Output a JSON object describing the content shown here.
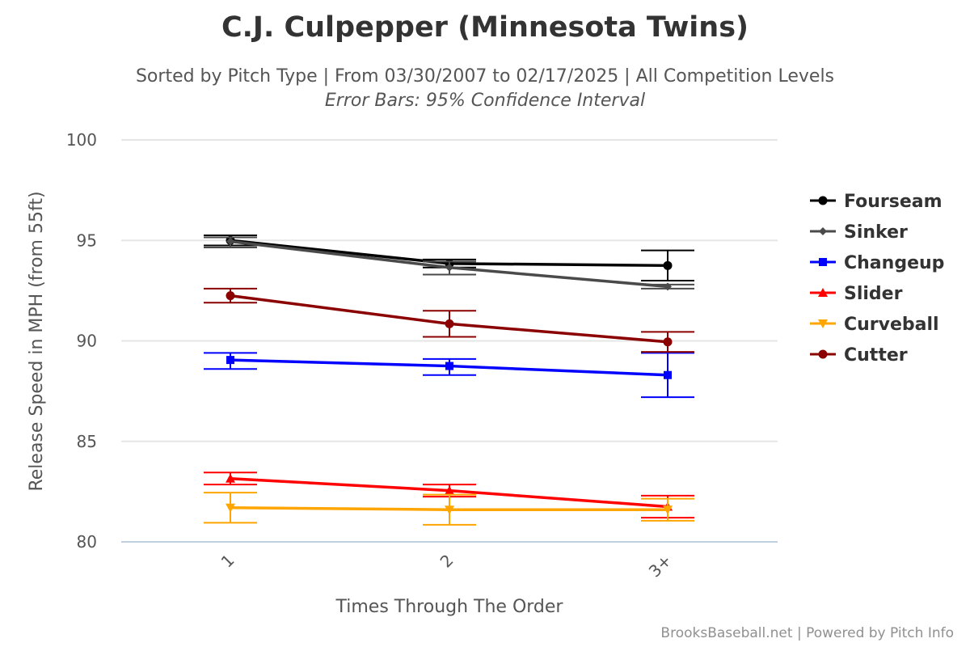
{
  "chart_data": {
    "type": "line",
    "title": "C.J. Culpepper (Minnesota Twins)",
    "subtitle": "Sorted by Pitch Type | From 03/30/2007 to 02/17/2025 | All Competition Levels",
    "subtitle2": "Error Bars: 95% Confidence Interval",
    "xlabel": "Times Through The Order",
    "ylabel": "Release Speed in MPH (from 55ft)",
    "categories": [
      "1",
      "2",
      "3+"
    ],
    "ylim": [
      80,
      100
    ],
    "yticks": [
      80,
      85,
      90,
      95,
      100
    ],
    "grid": true,
    "legend_position": "right",
    "credits": "BrooksBaseball.net | Powered by Pitch Info",
    "series": [
      {
        "name": "Fourseam",
        "color": "#000000",
        "marker": "circle",
        "values": [
          95.0,
          93.85,
          93.75
        ],
        "error_low": [
          94.75,
          93.65,
          93.0
        ],
        "error_high": [
          95.25,
          94.05,
          94.5
        ]
      },
      {
        "name": "Sinker",
        "color": "#4a4a4a",
        "marker": "diamond",
        "values": [
          94.95,
          93.65,
          92.7
        ],
        "error_low": [
          94.65,
          93.3,
          92.6
        ],
        "error_high": [
          95.15,
          93.95,
          92.8
        ]
      },
      {
        "name": "Changeup",
        "color": "#0000ff",
        "marker": "square",
        "values": [
          89.05,
          88.75,
          88.3
        ],
        "error_low": [
          88.6,
          88.3,
          87.2
        ],
        "error_high": [
          89.4,
          89.1,
          89.4
        ]
      },
      {
        "name": "Slider",
        "color": "#ff0000",
        "marker": "triangle",
        "values": [
          83.15,
          82.55,
          81.75
        ],
        "error_low": [
          82.85,
          82.25,
          81.2
        ],
        "error_high": [
          83.45,
          82.85,
          82.3
        ]
      },
      {
        "name": "Curveball",
        "color": "#ffa500",
        "marker": "triangle-down",
        "values": [
          81.7,
          81.6,
          81.6
        ],
        "error_low": [
          80.95,
          80.85,
          81.05
        ],
        "error_high": [
          82.45,
          82.35,
          82.15
        ]
      },
      {
        "name": "Cutter",
        "color": "#8b0000",
        "marker": "circle",
        "values": [
          92.25,
          90.85,
          89.95
        ],
        "error_low": [
          91.9,
          90.2,
          89.45
        ],
        "error_high": [
          92.6,
          91.5,
          90.45
        ]
      }
    ]
  }
}
